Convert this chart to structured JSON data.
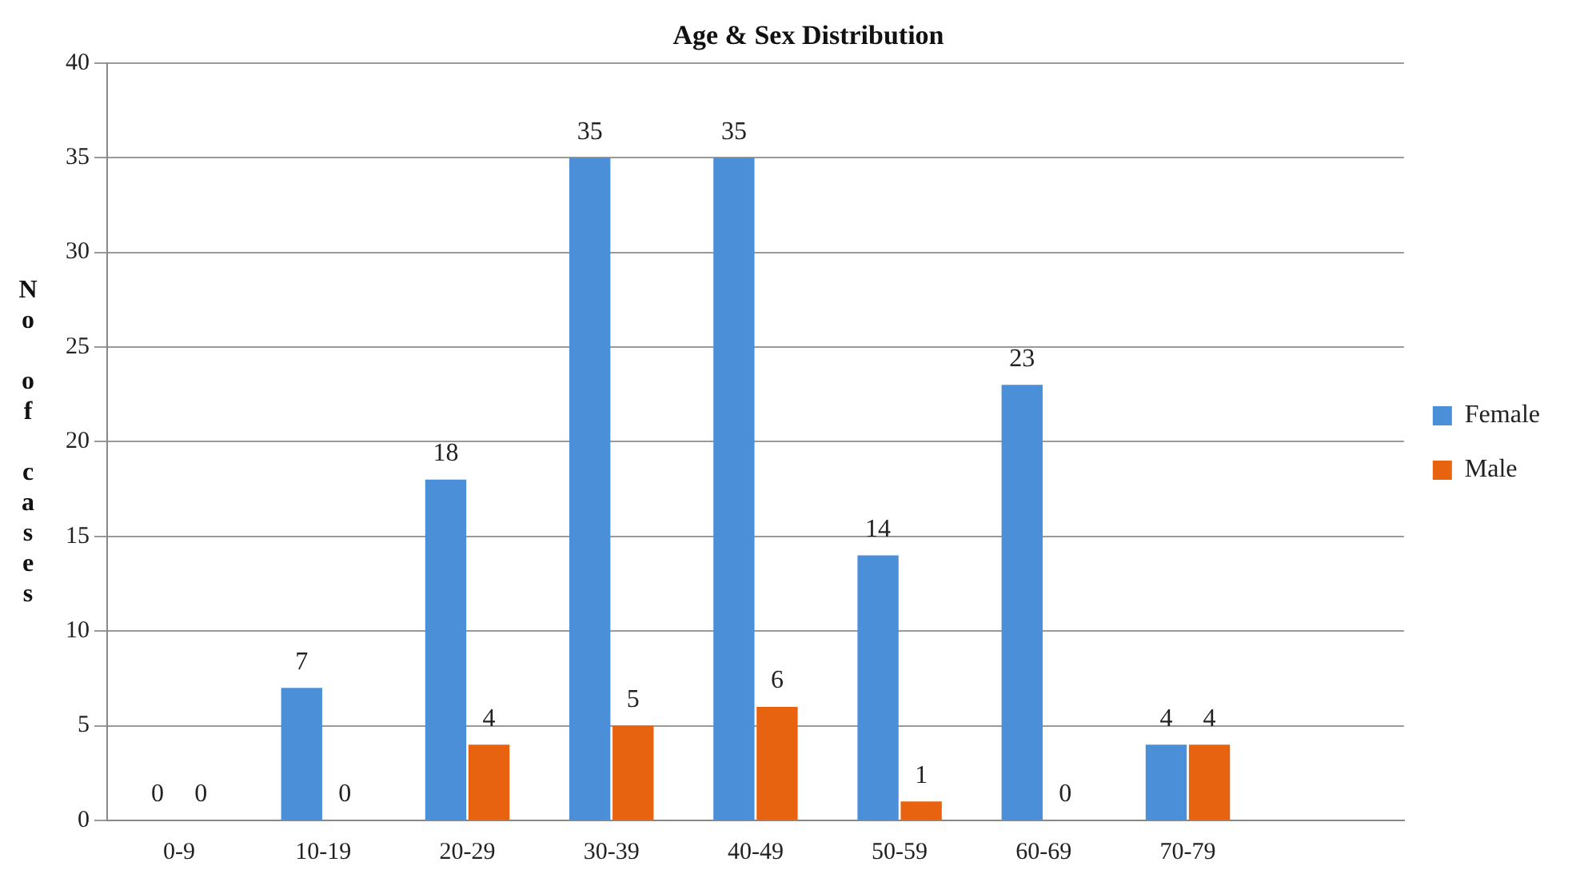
{
  "chart_data": {
    "type": "bar",
    "title": "Age & Sex Distribution",
    "ylabel": "No of cases",
    "categories": [
      "0-9",
      "10-19",
      "20-29",
      "30-39",
      "40-49",
      "50-59",
      "60-69",
      "70-79",
      null
    ],
    "series": [
      {
        "name": "Female",
        "color": "#4a8fd8",
        "values": [
          0,
          7,
          18,
          35,
          35,
          14,
          23,
          4,
          null
        ]
      },
      {
        "name": "Male",
        "color": "#e8630f",
        "values": [
          0,
          0,
          4,
          5,
          6,
          1,
          0,
          4,
          null
        ]
      }
    ],
    "ylim": [
      0,
      40
    ],
    "yticks": [
      0,
      5,
      10,
      15,
      20,
      25,
      30,
      35,
      40
    ],
    "grid": "y",
    "legend": "right",
    "data_labels": true
  }
}
